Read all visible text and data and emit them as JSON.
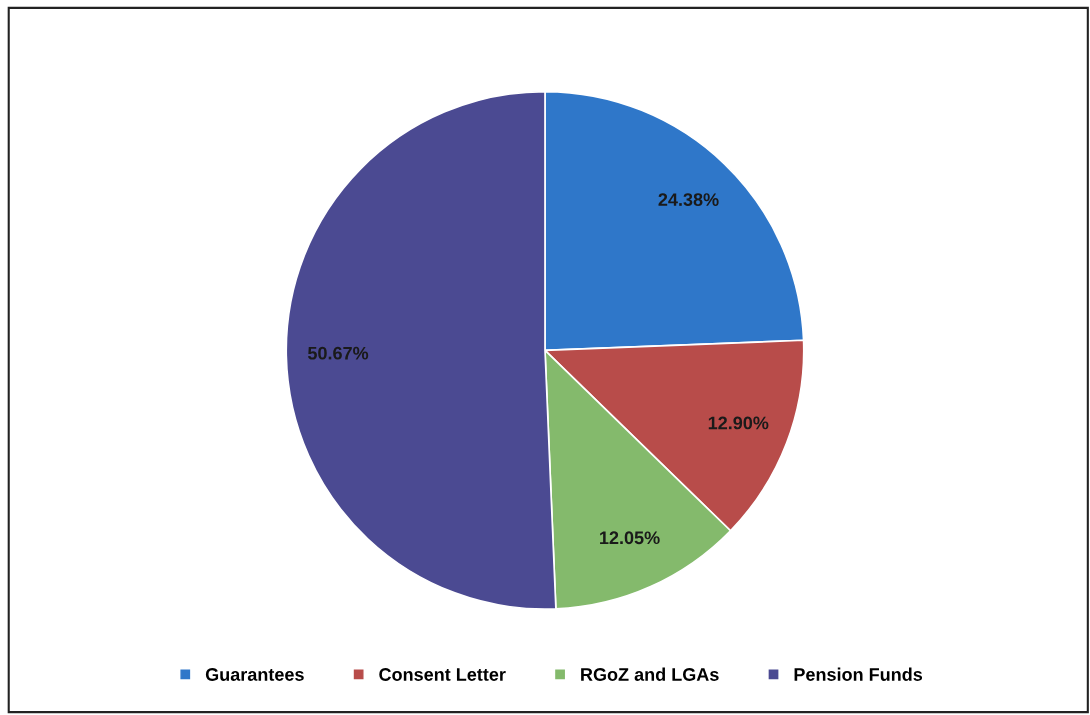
{
  "chart_data": {
    "type": "pie",
    "categories": [
      "Guarantees",
      "Consent Letter",
      "RGoZ and LGAs",
      "Pension Funds"
    ],
    "values": [
      24.38,
      12.9,
      12.05,
      50.67
    ],
    "value_labels": [
      "24.38%",
      "12.90%",
      "12.05%",
      "50.67%"
    ],
    "colors": [
      "#2f77c9",
      "#b84c4a",
      "#84ba6c",
      "#4b4a92"
    ],
    "legend": "bottom"
  }
}
